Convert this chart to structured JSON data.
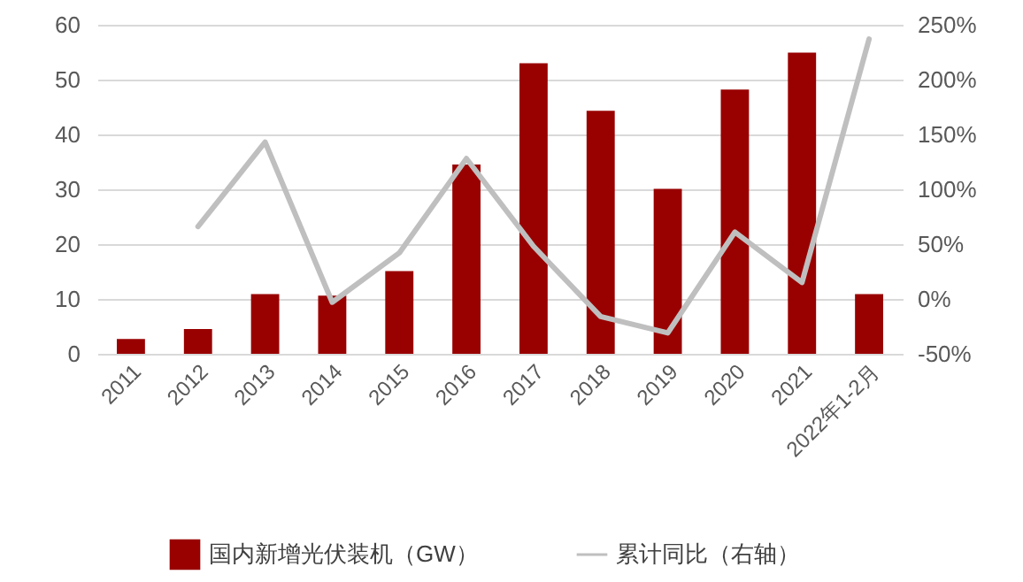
{
  "chart_data": {
    "type": "bar",
    "categories": [
      "2011",
      "2012",
      "2013",
      "2014",
      "2015",
      "2016",
      "2017",
      "2018",
      "2019",
      "2020",
      "2021",
      "2022年1-2月"
    ],
    "series": [
      {
        "name": "国内新增光伏装机（GW）",
        "color": "#990000",
        "values": [
          2.7,
          4.5,
          10.9,
          10.6,
          15.1,
          34.5,
          53,
          44.3,
          30.1,
          48.2,
          54.9,
          10.9
        ]
      },
      {
        "name": "累计同比（右轴）",
        "type": "line",
        "axis": "y2",
        "color": "#bfbfbf",
        "values": [
          null,
          66,
          143,
          -3,
          42,
          128,
          48,
          -16,
          -31,
          61,
          15,
          237
        ]
      }
    ],
    "ylim": [
      0,
      60
    ],
    "yticks": [
      0,
      10,
      20,
      30,
      40,
      50,
      60
    ],
    "y2lim": [
      -50,
      250
    ],
    "y2ticks": [
      {
        "value": -50,
        "label": "-50%"
      },
      {
        "value": 0,
        "label": "0%"
      },
      {
        "value": 50,
        "label": "50%"
      },
      {
        "value": 100,
        "label": "100%"
      },
      {
        "value": 150,
        "label": "150%"
      },
      {
        "value": 200,
        "label": "200%"
      },
      {
        "value": 250,
        "label": "250%"
      }
    ],
    "grid": "y",
    "legend": "bottom",
    "marker": "none",
    "line_style": "solid"
  }
}
